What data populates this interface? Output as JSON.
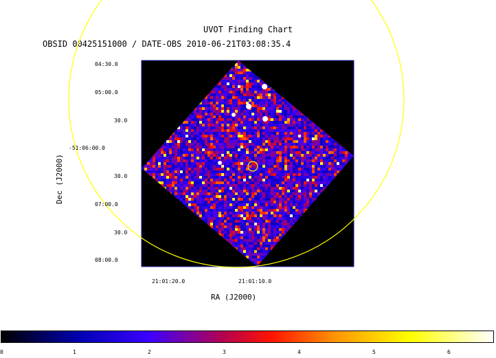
{
  "chart": {
    "title": "UVOT Finding Chart",
    "subtitle": "OBSID 00425151000 / DATE-OBS 2010-06-21T03:08:35.4",
    "ylabel": "Dec (J2000)",
    "xlabel": "RA (J2000)",
    "y_ticks": [
      "04:30.0",
      "05:00.0",
      "30.0",
      "-51:06:00.0",
      "30.0",
      "07:00.0",
      "30.0",
      "08:00.0"
    ],
    "x_ticks": [
      "21:01:20.0",
      "21:01:10.0"
    ],
    "colorbar_ticks": [
      "0",
      "1",
      "2",
      "3",
      "4",
      "5",
      "6"
    ],
    "colorbar_range": [
      0,
      6.6
    ],
    "colors": {
      "overlay_circle": "#ffff00",
      "frame": "#1a1aa0",
      "background": "#000000"
    }
  }
}
